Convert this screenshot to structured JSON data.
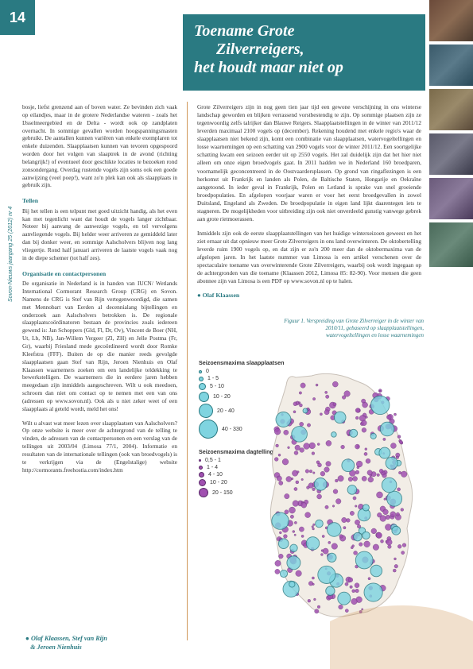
{
  "page_number": "14",
  "sidelabel": "Sovon-Nieuws jaargang 25 (2012) nr 4",
  "header": {
    "line1": "Toename Grote",
    "line2": "Zilverreigers,",
    "line3": "het houdt maar niet op"
  },
  "left": {
    "intro": "bosje, liefst grenzend aan of boven water. Ze bevinden zich vaak op eilandjes, maar in de grotere Nederlandse wateren - zoals het IJsselmeergebied en de Delta - wordt ook op zandplaten overnacht. In sommige gevallen worden hoogspanningsmasten gebruikt. De aantallen kunnen variëren van enkele exemplaren tot enkele duizenden. Slaapplaatsen kunnen van tevoren opgespoord worden door het volgen van slaaptrek in de avond (richting belangrijk!) of eventueel door geschikte locaties te bezoeken rond zonsondergang. Overdag rustende vogels zijn soms ook een goede aanwijzing (veel poep!), want zo'n plek kan ook als slaapplaats in gebruik zijn.",
    "tellen_head": "Tellen",
    "tellen": "Bij het tellen is een telpunt met goed uitzicht handig, als het even kan met tegenlicht want dat houdt de vogels langer zichtbaar. Noteer bij aanvang de aanwezige vogels, en tel vervolgens aanvliegende vogels. Bij helder weer arriveren ze gemiddeld later dan bij donker weer, en sommige Aalscholvers blijven nog lang vliegertje. Rond half januari arriveren de laatste vogels vaak nog in de diepe schemer (tot half zes).",
    "org_head": "Organisatie en contactpersonen",
    "org": "De organisatie in Nederland is in handen van IUCN/ Wetlands International Cormorant Research Group (CRG) en Sovon. Namens de CRG is Stef van Rijn vertegenwoordigd, die samen met Mennobart van Eerden al decennialang bijtellingen en onderzoek aan Aalscholvers betrokken is. De regionale slaapplaatscoördinatoren bestaan de provincies zoals iedereen gewend is: Jan Schoppers (Gld, Fl, Dr, Ov), Vincent de Boer (NH, Ut, Lb, NB), Jan-Willem Vergeer (Zl, ZH) en Jelle Postma (Fr, Gr), waarbij Friesland mede gecoördineerd wordt door Romke Kleefstra (FFF). Buiten de op die manier reeds gevolgde slaapplaatsen gaan Stef van Rijn, Jeroen Nienhuis en Olaf Klaassen waarnemers zoeken om een landelijke teldekking te bewerkstelligen. De waarnemers die in eerdere jaren hebben meegedaan zijn inmiddels aangeschreven. Wilt u ook meedoen, schroom dan niet om contact op te nemen met een van ons (adressen op www.sovon.nl). Ook als u niet zeker weet of een slaapplaats al geteld wordt, meld het ons!",
    "closing": "Wilt u alvast wat meer lezen over slaapplaatsen van Aalscholvers? Op onze website is meer over de achtergrond van de telling te vinden, de adressen van de contactpersonen en een verslag van de tellingen uit 2003/04 (Limosa 77/1, 2004). Informatie en resultaten van de internationale tellingen (ook van broedvogels) is te verkrijgen via de (Engelstalige) website http://cormorants.freehostia.com/index.htm"
  },
  "right": {
    "p1": "Grote Zilverreigers zijn in nog geen tien jaar tijd een gewone verschijning in ons winterse landschap geworden en blijken verrassend vorstbestendig te zijn. Op sommige plaatsen zijn ze tegenwoordig zelfs talrijker dan Blauwe Reigers. Slaapplaatstellingen in de winter van 2011/12 leverden maximaal 2100 vogels op (december). Rekening houdend met enkele regio's waar de slaapplaatsen niet bekend zijn, komt een combinatie van slaapplaatsen, watervogeltellingen en losse waarnemingen op een schatting van 2900 vogels voor de winter 2011/12. Een soortgelijke schatting kwam een seizoen eerder uit op 2550 vogels. Het zal duidelijk zijn dat het hier niet alleen om onze eigen broedvogels gaat. In 2011 hadden we in Nederland 160 broedparen, voornamelijk geconcentreerd in de Oostvaardersplassen. Op grond van ringaflezingen is een herkomst uit Frankrijk en landen als Polen, de Baltische Staten, Hongarije en Oekraïne aangetoond. In ieder geval in Frankrijk, Polen en Letland is sprake van snel groeiende broedpopulaties. En afgelopen voorjaar waren er voor het eerst broedgevallen in zowel Duitsland, Engeland als Zweden. De broedpopulatie in eigen land lijkt daarentegen iets te stagneren. De mogelijkheden voor uitbreiding zijn ook niet onverdeeld gunstig vanwege gebrek aan grote rietmoerassen.",
    "p2": "Inmiddels zijn ook de eerste slaapplaatstellingen van het huidige winterseizoen geweest en het ziet ernaar uit dat opnieuw meer Grote Zilverreigers in ons land overwinteren. De oktobertelling leverde ruim 1900 vogels op, en dat zijn er zo'n 200 meer dan de oktobermaxima van de afgelopen jaren. In het laatste nummer van Limosa is een artikel verschenen over de spectaculaire toename van overwinterende Grote Zilverreigers, waarbij ook wordt ingegaan op de achtergronden van die toename (Klaassen 2012, Limosa 85: 82-90). Voor mensen die geen abonnee zijn van Limosa is een PDF op www.sovon.nl op te halen.",
    "author": "Olaf Klaassen"
  },
  "figure_caption": "Figuur 1. Verspreiding van Grote Zilverreiger in de winter van 2010/11, gebaseerd op slaapplaatstellingen, watervogeltellingen en losse waarnemingen",
  "legend": {
    "block1_title": "Seizoensmaxima slaapplaatsen",
    "block1": [
      {
        "size": 4,
        "label": "0"
      },
      {
        "size": 6,
        "label": "1 - 5"
      },
      {
        "size": 9,
        "label": "5 - 10"
      },
      {
        "size": 13,
        "label": "10 - 20"
      },
      {
        "size": 18,
        "label": "20 - 40"
      },
      {
        "size": 24,
        "label": "40 - 330"
      }
    ],
    "block2_title": "Seizoensmaxima dagtellingen",
    "block2": [
      {
        "size": 3,
        "label": "0,5 - 1"
      },
      {
        "size": 5,
        "label": "1 - 4"
      },
      {
        "size": 7,
        "label": "4 - 10"
      },
      {
        "size": 9,
        "label": "10 - 20"
      },
      {
        "size": 12,
        "label": "20 - 150"
      }
    ]
  },
  "map": {
    "outline_color": "#c8c0b8",
    "fill_color": "#f2ede6",
    "cyan_fill": "#7fd4e0",
    "cyan_stroke": "#2a7a82",
    "purple_fill": "#a050b0",
    "purple_stroke": "#5a2a6a"
  },
  "footer_authors": {
    "line1": "Olaf Klaassen, Stef van Rijn",
    "line2": "& Jeroen Nienhuis"
  }
}
